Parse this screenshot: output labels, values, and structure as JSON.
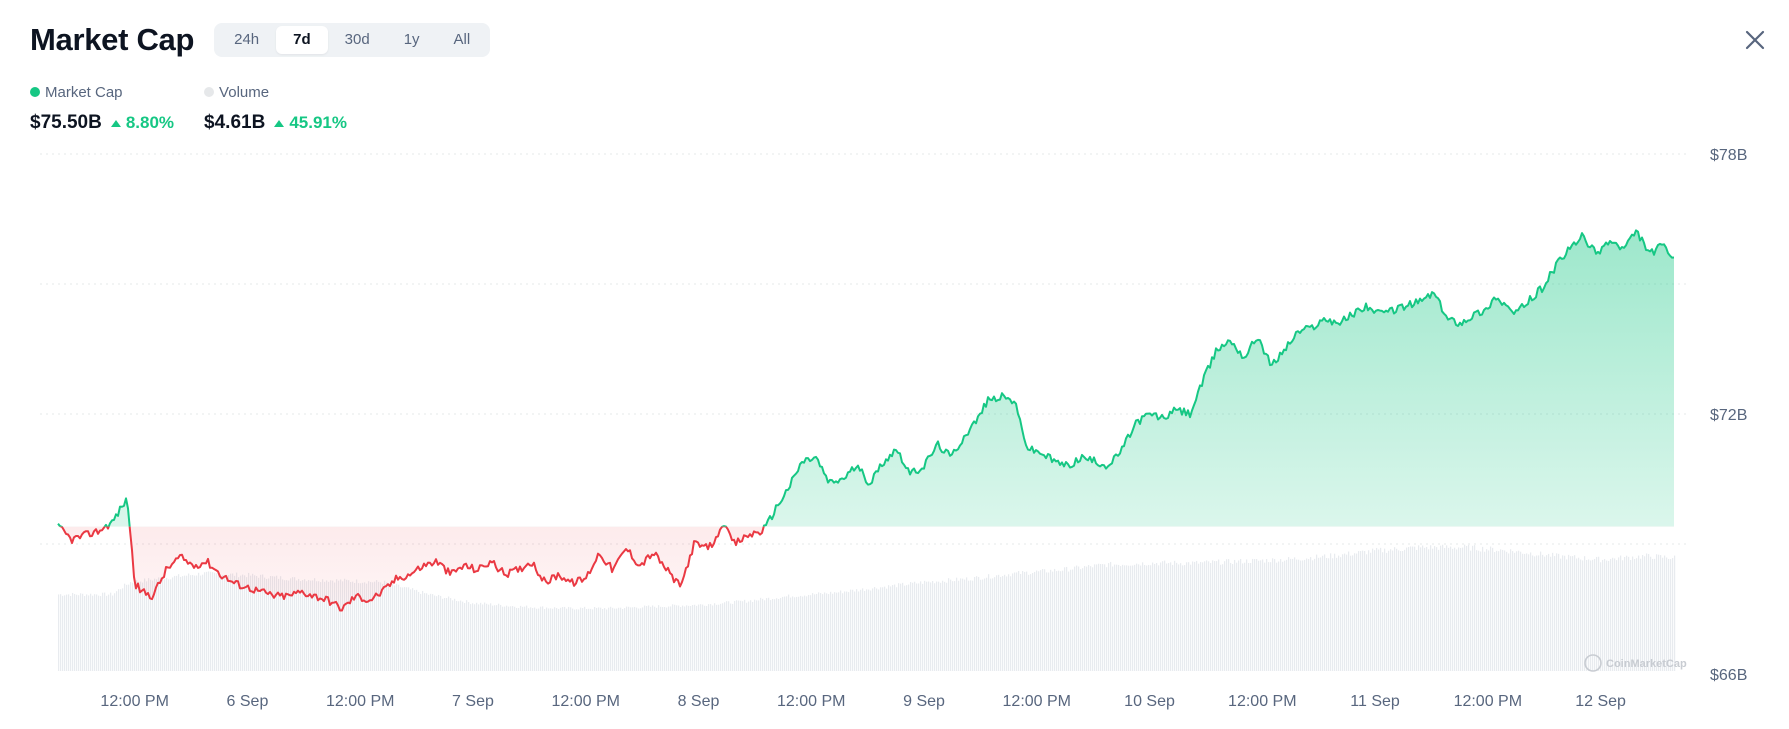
{
  "header": {
    "title": "Market Cap",
    "tabs": [
      {
        "label": "24h",
        "active": false
      },
      {
        "label": "7d",
        "active": true
      },
      {
        "label": "30d",
        "active": false
      },
      {
        "label": "1y",
        "active": false
      },
      {
        "label": "All",
        "active": false
      }
    ],
    "close_icon": "close-icon"
  },
  "legend": {
    "market_cap": {
      "label": "Market Cap",
      "value": "$75.50B",
      "change": "8.80%",
      "color": "#16c784"
    },
    "volume": {
      "label": "Volume",
      "value": "$4.61B",
      "change": "45.91%",
      "color": "#e6e8ea"
    }
  },
  "watermark": "CoinMarketCap",
  "colors": {
    "up": "#16c784",
    "down": "#ea3943",
    "volume": "#e8ebef",
    "grid": "#e6e8ea",
    "text": "#58667e"
  },
  "chart_data": {
    "type": "area",
    "y_ticks": [
      "$78B",
      "$72B",
      "$66B"
    ],
    "y_tick_values": [
      78,
      72,
      66
    ],
    "ylim": [
      66,
      78
    ],
    "x_tick_labels": [
      "12:00 PM",
      "6 Sep",
      "12:00 PM",
      "7 Sep",
      "12:00 PM",
      "8 Sep",
      "12:00 PM",
      "9 Sep",
      "12:00 PM",
      "10 Sep",
      "12:00 PM",
      "11 Sep",
      "12:00 PM",
      "12 Sep"
    ],
    "x_tick_days": [
      0.5,
      1.0,
      1.5,
      2.0,
      2.5,
      3.0,
      3.5,
      4.0,
      4.5,
      5.0,
      5.5,
      6.0,
      6.5,
      7.0
    ],
    "x_range_days": [
      0.16,
      7.33
    ],
    "baseline": 69.4,
    "grid": true,
    "series": [
      {
        "name": "Market Cap",
        "unit": "$B",
        "x_days": [
          0.16,
          0.22,
          0.28,
          0.34,
          0.4,
          0.46,
          0.47,
          0.5,
          0.53,
          0.58,
          0.64,
          0.7,
          0.76,
          0.82,
          0.88,
          0.94,
          1.0,
          1.06,
          1.12,
          1.18,
          1.24,
          1.3,
          1.36,
          1.42,
          1.48,
          1.54,
          1.6,
          1.66,
          1.72,
          1.78,
          1.84,
          1.9,
          1.96,
          2.02,
          2.08,
          2.14,
          2.2,
          2.26,
          2.32,
          2.38,
          2.44,
          2.5,
          2.56,
          2.62,
          2.68,
          2.74,
          2.8,
          2.86,
          2.92,
          2.98,
          3.04,
          3.08,
          3.1,
          3.16,
          3.22,
          3.28,
          3.3,
          3.34,
          3.4,
          3.46,
          3.52,
          3.58,
          3.64,
          3.7,
          3.76,
          3.82,
          3.88,
          3.94,
          4.0,
          4.06,
          4.12,
          4.18,
          4.24,
          4.28,
          4.34,
          4.4,
          4.46,
          4.52,
          4.58,
          4.64,
          4.7,
          4.76,
          4.82,
          4.88,
          4.94,
          5.0,
          5.06,
          5.12,
          5.18,
          5.24,
          5.3,
          5.36,
          5.42,
          5.48,
          5.54,
          5.6,
          5.66,
          5.72,
          5.78,
          5.84,
          5.9,
          5.96,
          6.02,
          6.08,
          6.14,
          6.2,
          6.26,
          6.32,
          6.38,
          6.44,
          6.5,
          6.52,
          6.56,
          6.62,
          6.68,
          6.74,
          6.8,
          6.86,
          6.92,
          6.98,
          7.04,
          7.1,
          7.16,
          7.22,
          7.28,
          7.33
        ],
        "values": [
          69.4,
          69.1,
          69.2,
          69.3,
          69.5,
          70.0,
          69.9,
          68.1,
          67.9,
          67.8,
          68.4,
          68.7,
          68.5,
          68.6,
          68.3,
          68.1,
          68.0,
          67.9,
          67.8,
          67.8,
          67.9,
          67.8,
          67.7,
          67.5,
          67.8,
          67.7,
          67.9,
          68.2,
          68.3,
          68.5,
          68.6,
          68.3,
          68.5,
          68.4,
          68.6,
          68.3,
          68.4,
          68.6,
          68.1,
          68.3,
          68.1,
          68.2,
          68.8,
          68.4,
          68.9,
          68.5,
          68.8,
          68.4,
          68.0,
          69.0,
          68.9,
          69.1,
          69.5,
          69.0,
          69.2,
          69.3,
          69.4,
          69.8,
          70.3,
          70.9,
          71.0,
          70.4,
          70.5,
          70.8,
          70.4,
          70.9,
          71.2,
          70.6,
          70.8,
          71.3,
          71.0,
          71.5,
          71.9,
          72.3,
          72.4,
          72.3,
          71.2,
          71.1,
          70.9,
          70.8,
          71.0,
          70.9,
          70.8,
          71.2,
          71.8,
          72.0,
          71.9,
          72.1,
          72.0,
          72.8,
          73.5,
          73.7,
          73.3,
          73.8,
          73.1,
          73.5,
          73.9,
          74.0,
          74.2,
          74.1,
          74.3,
          74.5,
          74.3,
          74.4,
          74.5,
          74.6,
          74.8,
          74.2,
          74.1,
          74.3,
          74.4,
          74.7,
          74.6,
          74.3,
          74.6,
          74.9,
          75.4,
          75.8,
          76.1,
          75.7,
          76.0,
          75.8,
          76.2,
          75.7,
          75.9,
          75.5
        ]
      },
      {
        "name": "Volume",
        "x_days": [
          0.16,
          0.4,
          0.44,
          0.48,
          0.6,
          0.8,
          1.0,
          1.2,
          1.6,
          1.8,
          2.0,
          2.2,
          2.4,
          2.6,
          2.8,
          3.0,
          3.2,
          3.4,
          3.6,
          3.8,
          4.0,
          4.2,
          4.4,
          4.6,
          4.8,
          5.0,
          5.2,
          5.4,
          5.6,
          5.8,
          6.0,
          6.2,
          6.4,
          6.6,
          6.8,
          7.0,
          7.2,
          7.33
        ],
        "values_relative": [
          0.44,
          0.44,
          0.48,
          0.51,
          0.53,
          0.56,
          0.55,
          0.53,
          0.51,
          0.44,
          0.39,
          0.37,
          0.36,
          0.36,
          0.37,
          0.38,
          0.4,
          0.43,
          0.45,
          0.48,
          0.51,
          0.53,
          0.56,
          0.58,
          0.61,
          0.62,
          0.62,
          0.63,
          0.64,
          0.66,
          0.69,
          0.71,
          0.71,
          0.69,
          0.66,
          0.64,
          0.66,
          0.65
        ]
      }
    ]
  }
}
